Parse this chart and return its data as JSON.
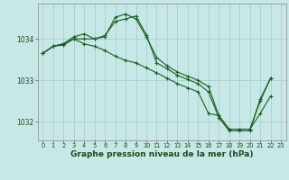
{
  "title": "Graphe pression niveau de la mer (hPa)",
  "bg_color": "#c8e8e8",
  "grid_color": "#a8cece",
  "line_color": "#1a6020",
  "xlim": [
    -0.5,
    23.5
  ],
  "ylim": [
    1031.55,
    1034.85
  ],
  "yticks": [
    1032,
    1033,
    1034
  ],
  "xticks": [
    0,
    1,
    2,
    3,
    4,
    5,
    6,
    7,
    8,
    9,
    10,
    11,
    12,
    13,
    14,
    15,
    16,
    17,
    18,
    19,
    20,
    21,
    22,
    23
  ],
  "series": [
    [
      1033.65,
      1033.82,
      1033.85,
      1034.0,
      1034.0,
      1034.0,
      1034.05,
      1034.52,
      1034.6,
      1034.48,
      1034.05,
      1033.55,
      1033.35,
      1033.2,
      1033.1,
      1033.0,
      1032.85,
      1032.15,
      1031.82,
      1031.82,
      1031.82,
      1032.5,
      1033.05,
      null
    ],
    [
      1033.65,
      1033.82,
      1033.88,
      1034.05,
      1034.12,
      1034.0,
      1034.08,
      1034.42,
      1034.48,
      1034.55,
      1034.1,
      1033.42,
      1033.28,
      1033.12,
      1033.02,
      1032.92,
      1032.72,
      1032.1,
      1031.78,
      1031.78,
      1031.78,
      1032.55,
      1033.05,
      null
    ],
    [
      1033.65,
      1033.82,
      1033.88,
      1034.0,
      1033.88,
      1033.82,
      1033.72,
      1033.58,
      1033.48,
      1033.42,
      1033.3,
      1033.18,
      1033.05,
      1032.92,
      1032.82,
      1032.72,
      1032.2,
      1032.15,
      1031.82,
      1031.82,
      1031.82,
      1032.2,
      1032.62,
      null
    ]
  ]
}
